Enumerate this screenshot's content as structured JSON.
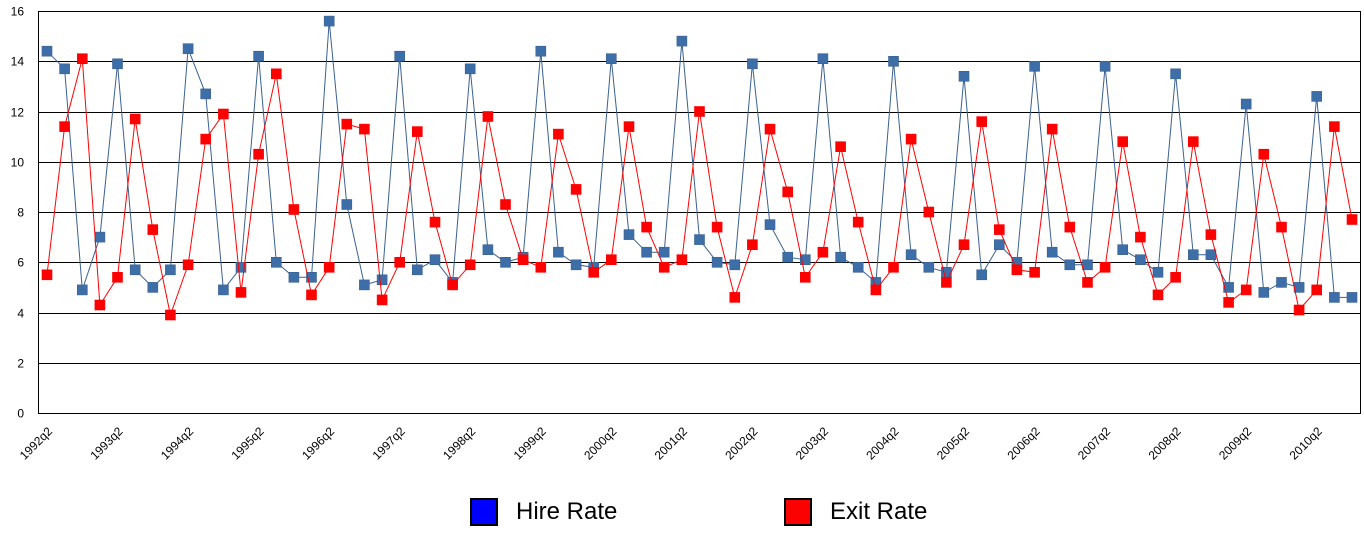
{
  "chart_data": {
    "type": "line",
    "ylim": [
      0,
      16
    ],
    "yticks": [
      0,
      2,
      4,
      6,
      8,
      10,
      12,
      14,
      16
    ],
    "grid": true,
    "legend_position": "bottom",
    "x": [
      "1992q2",
      "1992q3",
      "1992q4",
      "1993q1",
      "1993q2",
      "1993q3",
      "1993q4",
      "1994q1",
      "1994q2",
      "1994q3",
      "1994q4",
      "1995q1",
      "1995q2",
      "1995q3",
      "1995q4",
      "1996q1",
      "1996q2",
      "1996q3",
      "1996q4",
      "1997q1",
      "1997q2",
      "1997q3",
      "1997q4",
      "1998q1",
      "1998q2",
      "1998q3",
      "1998q4",
      "1999q1",
      "1999q2",
      "1999q3",
      "1999q4",
      "2000q1",
      "2000q2",
      "2000q3",
      "2000q4",
      "2001q1",
      "2001q2",
      "2001q3",
      "2001q4",
      "2002q1",
      "2002q2",
      "2002q3",
      "2002q4",
      "2003q1",
      "2003q2",
      "2003q3",
      "2003q4",
      "2004q1",
      "2004q2",
      "2004q3",
      "2004q4",
      "2005q1",
      "2005q2",
      "2005q3",
      "2005q4",
      "2006q1",
      "2006q2",
      "2006q3",
      "2006q4",
      "2007q1",
      "2007q2",
      "2007q3",
      "2007q4",
      "2008q1",
      "2008q2",
      "2008q3",
      "2008q4",
      "2009q1",
      "2009q2",
      "2009q3",
      "2009q4",
      "2010q1",
      "2010q2",
      "2010q3",
      "2010q4"
    ],
    "xtick_labels": [
      "1992q2",
      "1993q2",
      "1994q2",
      "1995q2",
      "1996q2",
      "1997q2",
      "1998q2",
      "1999q2",
      "2000q2",
      "2001q2",
      "2002q2",
      "2003q2",
      "2004q2",
      "2005q2",
      "2006q2",
      "2007q2",
      "2008q2",
      "2009q2",
      "2010q2"
    ],
    "series": [
      {
        "name": "Hire Rate",
        "line_color": "#3a6190",
        "marker_color": "#3d6ea8",
        "values": [
          14.4,
          13.7,
          4.9,
          7.0,
          13.9,
          5.7,
          5.0,
          5.7,
          14.5,
          12.7,
          4.9,
          5.8,
          14.2,
          6.0,
          5.4,
          5.4,
          15.6,
          8.3,
          5.1,
          5.3,
          14.2,
          5.7,
          6.1,
          5.2,
          13.7,
          6.5,
          6.0,
          6.2,
          14.4,
          6.4,
          5.9,
          5.8,
          14.1,
          7.1,
          6.4,
          6.4,
          14.8,
          6.9,
          6.0,
          5.9,
          13.9,
          7.5,
          6.2,
          6.1,
          14.1,
          6.2,
          5.8,
          5.2,
          14.0,
          6.3,
          5.8,
          5.6,
          13.4,
          5.5,
          6.7,
          6.0,
          13.8,
          6.4,
          5.9,
          5.9,
          13.8,
          6.5,
          6.1,
          5.6,
          13.5,
          6.3,
          6.3,
          5.0,
          12.3,
          4.8,
          5.2,
          5.0,
          12.6,
          4.6,
          4.6
        ]
      },
      {
        "name": "Exit Rate",
        "line_color": "#ff0000",
        "marker_color": "#ff0000",
        "values": [
          5.5,
          11.4,
          14.1,
          4.3,
          5.4,
          11.7,
          7.3,
          3.9,
          5.9,
          10.9,
          11.9,
          4.8,
          10.3,
          13.5,
          8.1,
          4.7,
          5.8,
          11.5,
          11.3,
          4.5,
          6.0,
          11.2,
          7.6,
          5.1,
          5.9,
          11.8,
          8.3,
          6.1,
          5.8,
          11.1,
          8.9,
          5.6,
          6.1,
          11.4,
          7.4,
          5.8,
          6.1,
          12.0,
          7.4,
          4.6,
          6.7,
          11.3,
          8.8,
          5.4,
          6.4,
          10.6,
          7.6,
          4.9,
          5.8,
          10.9,
          8.0,
          5.2,
          6.7,
          11.6,
          7.3,
          5.7,
          5.6,
          11.3,
          7.4,
          5.2,
          5.8,
          10.8,
          7.0,
          4.7,
          5.4,
          10.8,
          7.1,
          4.4,
          4.9,
          10.3,
          7.4,
          4.1,
          4.9,
          11.4,
          7.7
        ]
      }
    ]
  },
  "legend": {
    "items": [
      {
        "label": "Hire Rate",
        "color": "#0000ff"
      },
      {
        "label": "Exit Rate",
        "color": "#ff0000"
      }
    ]
  }
}
